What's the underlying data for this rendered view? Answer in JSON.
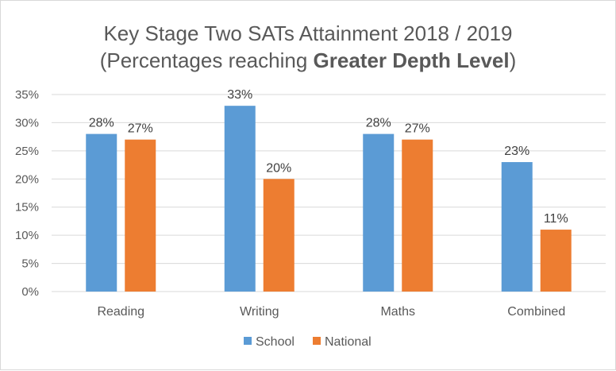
{
  "chart_data": {
    "type": "bar",
    "title_line1": "Key Stage Two SATs Attainment 2018 / 2019",
    "title_line2_prefix": "(Percentages reaching ",
    "title_line2_bold": "Greater Depth Level",
    "title_line2_suffix": ")",
    "categories": [
      "Reading",
      "Writing",
      "Maths",
      "Combined"
    ],
    "series": [
      {
        "name": "School",
        "values": [
          28,
          33,
          28,
          23
        ],
        "color": "#5b9bd5"
      },
      {
        "name": "National",
        "values": [
          27,
          20,
          27,
          11
        ],
        "color": "#ed7d31"
      }
    ],
    "ylim": [
      0,
      35
    ],
    "yticks": [
      0,
      5,
      10,
      15,
      20,
      25,
      30,
      35
    ],
    "ytick_labels": [
      "0%",
      "5%",
      "10%",
      "15%",
      "20%",
      "25%",
      "30%",
      "35%"
    ],
    "value_suffix": "%",
    "grid": true,
    "legend_position": "bottom",
    "gridline_color": "#d9d9d9"
  }
}
